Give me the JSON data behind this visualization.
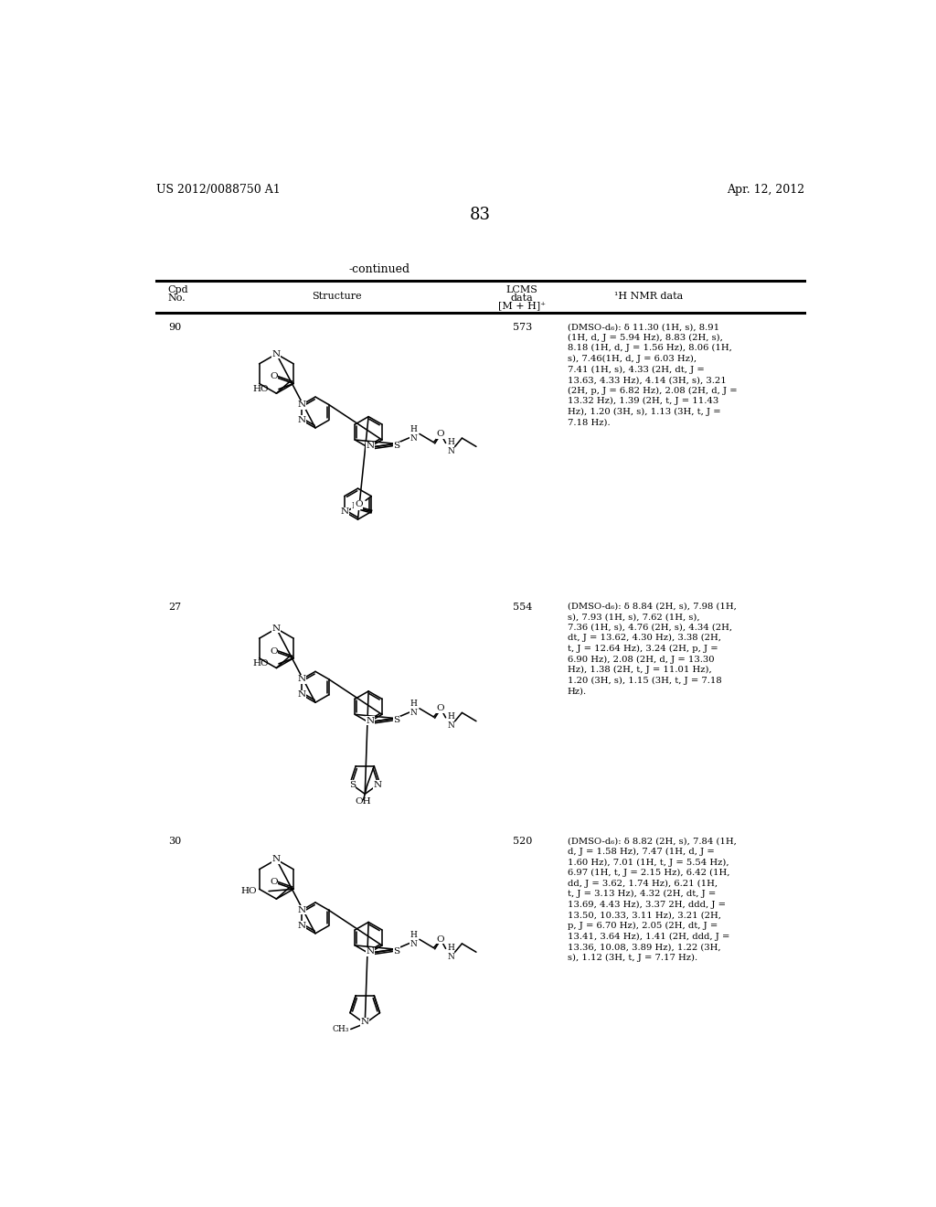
{
  "background_color": "#ffffff",
  "page_number": "83",
  "top_left_text": "US 2012/0088750 A1",
  "top_right_text": "Apr. 12, 2012",
  "continued_text": "-continued",
  "rows": [
    {
      "cpd_no": "90",
      "lcms": "573",
      "nmr": "(DMSO-d₆): δ 11.30 (1H, s), 8.91\n(1H, d, J = 5.94 Hz), 8.83 (2H, s),\n8.18 (1H, d, J = 1.56 Hz), 8.06 (1H,\ns), 7.46(1H, d, J = 6.03 Hz),\n7.41 (1H, s), 4.33 (2H, dt, J =\n13.63, 4.33 Hz), 4.14 (3H, s), 3.21\n(2H, p, J = 6.82 Hz), 2.08 (2H, d, J =\n13.32 Hz), 1.39 (2H, t, J = 11.43\nHz), 1.20 (3H, s), 1.13 (3H, t, J =\n7.18 Hz)."
    },
    {
      "cpd_no": "27",
      "lcms": "554",
      "nmr": "(DMSO-d₆): δ 8.84 (2H, s), 7.98 (1H,\ns), 7.93 (1H, s), 7.62 (1H, s),\n7.36 (1H, s), 4.76 (2H, s), 4.34 (2H,\ndt, J = 13.62, 4.30 Hz), 3.38 (2H,\nt, J = 12.64 Hz), 3.24 (2H, p, J =\n6.90 Hz), 2.08 (2H, d, J = 13.30\nHz), 1.38 (2H, t, J = 11.01 Hz),\n1.20 (3H, s), 1.15 (3H, t, J = 7.18\nHz)."
    },
    {
      "cpd_no": "30",
      "lcms": "520",
      "nmr": "(DMSO-d₆): δ 8.82 (2H, s), 7.84 (1H,\nd, J = 1.58 Hz), 7.47 (1H, d, J =\n1.60 Hz), 7.01 (1H, t, J = 5.54 Hz),\n6.97 (1H, t, J = 2.15 Hz), 6.42 (1H,\ndd, J = 3.62, 1.74 Hz), 6.21 (1H,\nt, J = 3.13 Hz), 4.32 (2H, dt, J =\n13.69, 4.43 Hz), 3.37 2H, ddd, J =\n13.50, 10.33, 3.11 Hz), 3.21 (2H,\np, J = 6.70 Hz), 2.05 (2H, dt, J =\n13.41, 3.64 Hz), 1.41 (2H, ddd, J =\n13.36, 10.08, 3.89 Hz), 1.22 (3H,\ns), 1.12 (3H, t, J = 7.17 Hz)."
    }
  ]
}
